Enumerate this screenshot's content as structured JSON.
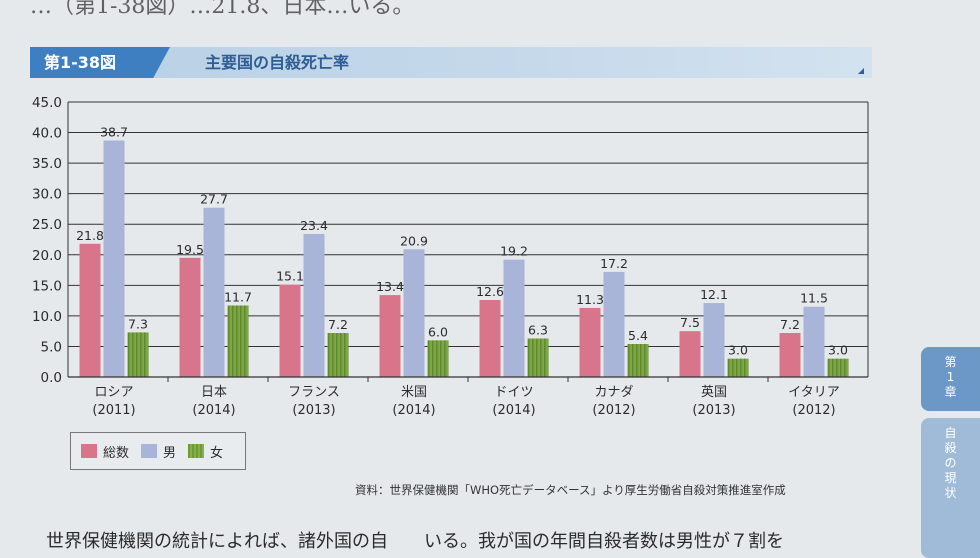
{
  "page_text": {
    "top": "…（第1-38図）…21.8、日本…いる。",
    "bottom": "世界保健機関の統計によれば、諸外国の自　　いる。我が国の年間自殺者数は男性が７割を"
  },
  "figure": {
    "number": "第1-38図",
    "title": "主要国の自殺死亡率",
    "source": "資料：世界保健機関「WHO死亡データベース」より厚生労働省自殺対策推進室作成"
  },
  "side_tabs": {
    "chapter": [
      "第",
      "1",
      "章"
    ],
    "section": [
      "自",
      "殺",
      "の",
      "現",
      "状"
    ]
  },
  "chart_data": {
    "type": "bar",
    "categories": [
      "ロシア",
      "日本",
      "フランス",
      "米国",
      "ドイツ",
      "カナダ",
      "英国",
      "イタリア"
    ],
    "years": [
      "(2011)",
      "(2014)",
      "(2013)",
      "(2014)",
      "(2014)",
      "(2012)",
      "(2013)",
      "(2012)"
    ],
    "series": [
      {
        "name": "総数",
        "color": "#d9758a",
        "values": [
          21.8,
          19.5,
          15.1,
          13.4,
          12.6,
          11.3,
          7.5,
          7.2
        ]
      },
      {
        "name": "男",
        "color": "#a8b4d8",
        "values": [
          38.7,
          27.7,
          23.4,
          20.9,
          19.2,
          17.2,
          12.1,
          11.5
        ]
      },
      {
        "name": "女",
        "color": "#7ea645",
        "values": [
          7.3,
          11.7,
          7.2,
          6.0,
          6.3,
          5.4,
          3.0,
          3.0
        ]
      }
    ],
    "ylim": [
      0,
      45
    ],
    "yticks": [
      "0.0",
      "5.0",
      "10.0",
      "15.0",
      "20.0",
      "25.0",
      "30.0",
      "35.0",
      "40.0",
      "45.0"
    ],
    "grid": true,
    "legend_position": "bottom-left"
  }
}
